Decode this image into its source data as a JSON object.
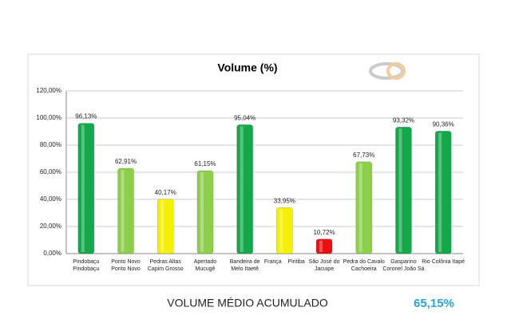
{
  "chart_data": {
    "type": "bar",
    "title": "Volume (%)",
    "categories": [
      [
        "Pindobaçu",
        "Pindobaçu"
      ],
      [
        "Ponto Novo",
        "Ponto Novo"
      ],
      [
        "Pedras Altas",
        "Capim Grosso"
      ],
      [
        "Apertado",
        "Mucugê"
      ],
      [
        "Bandeira de",
        "Melo Itaetê"
      ],
      [
        "França    Piritiba"
      ],
      [
        "São José do",
        "Jacuipe"
      ],
      [
        "Pedra do Cavalo",
        "Cachoeira"
      ],
      [
        "Gasparino",
        "Coronel João Sá"
      ],
      [
        "Rio Colônia Itapé"
      ]
    ],
    "values": [
      96.13,
      62.91,
      40.17,
      61.15,
      95.04,
      33.95,
      10.72,
      67.73,
      93.32,
      90.36
    ],
    "value_labels": [
      "96,13%",
      "62,91%",
      "40,17%",
      "61,15%",
      "95,04%",
      "33,95%",
      "10,72%",
      "67,73%",
      "93,32%",
      "90,36%"
    ],
    "colors": [
      "#14a84a",
      "#8ccf4a",
      "#f4f000",
      "#8ccf4a",
      "#14a84a",
      "#f4f000",
      "#e81010",
      "#8ccf4a",
      "#14a84a",
      "#14a84a"
    ],
    "ylim": [
      0,
      120
    ],
    "yticks": [
      {
        "value": 0,
        "label": "0,00%"
      },
      {
        "value": 20,
        "label": "20,00%"
      },
      {
        "value": 40,
        "label": "40,00%"
      },
      {
        "value": 60,
        "label": "60,00%"
      },
      {
        "value": 80,
        "label": "80,00%"
      },
      {
        "value": 100,
        "label": "100,00%"
      },
      {
        "value": 120,
        "label": "120,00%"
      }
    ],
    "grid": true
  },
  "summary": {
    "label": "VOLUME MÉDIO ACUMULADO",
    "value": "65,15%"
  }
}
